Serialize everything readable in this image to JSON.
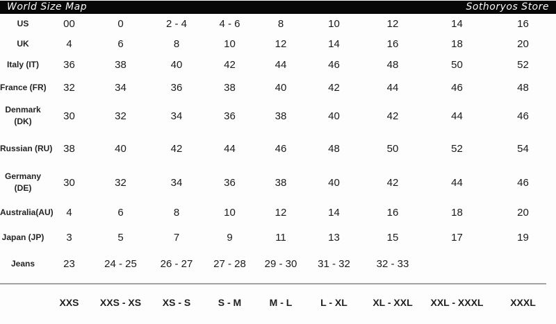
{
  "header": {
    "left_title": "World Size Map",
    "right_title": "Sothoryos Store"
  },
  "table": {
    "rows": [
      {
        "label": "US",
        "values": [
          "00",
          "0",
          "2 - 4",
          "4 - 6",
          "8",
          "10",
          "12",
          "14",
          "16"
        ]
      },
      {
        "label": "UK",
        "values": [
          "4",
          "6",
          "8",
          "10",
          "12",
          "14",
          "16",
          "18",
          "20"
        ]
      },
      {
        "label": "Italy (IT)",
        "values": [
          "36",
          "38",
          "40",
          "42",
          "44",
          "46",
          "48",
          "50",
          "52"
        ]
      },
      {
        "label": "France (FR)",
        "values": [
          "32",
          "34",
          "36",
          "38",
          "40",
          "42",
          "44",
          "46",
          "48"
        ]
      },
      {
        "label": "Denmark (DK)",
        "label_lines": [
          "Denmark",
          "(DK)"
        ],
        "values": [
          "30",
          "32",
          "34",
          "36",
          "38",
          "40",
          "42",
          "44",
          "46"
        ]
      },
      {
        "label": "Russian (RU)",
        "values": [
          "38",
          "40",
          "42",
          "44",
          "46",
          "48",
          "50",
          "52",
          "54"
        ]
      },
      {
        "label": "Germany (DE)",
        "label_lines": [
          "Germany",
          "(DE)"
        ],
        "values": [
          "30",
          "32",
          "34",
          "36",
          "38",
          "40",
          "42",
          "44",
          "46"
        ]
      },
      {
        "label": "Australia(AU)",
        "values": [
          "4",
          "6",
          "8",
          "10",
          "12",
          "14",
          "16",
          "18",
          "20"
        ]
      },
      {
        "label": "Japan (JP)",
        "values": [
          "3",
          "5",
          "7",
          "9",
          "11",
          "13",
          "15",
          "17",
          "19"
        ]
      },
      {
        "label": "Jeans",
        "values": [
          "23",
          "24 - 25",
          "26 - 27",
          "27 - 28",
          "29 - 30",
          "31 - 32",
          "32 - 33",
          "",
          ""
        ]
      }
    ],
    "size_categories": [
      "XXS",
      "XXS - XS",
      "XS - S",
      "S - M",
      "M - L",
      "L - XL",
      "XL - XXL",
      "XXL - XXXL",
      "XXXL"
    ]
  },
  "colors": {
    "header_bg": "#070707",
    "header_text": "#fafafa",
    "body_text": "#1a1a1a",
    "divider": "#a3a3a3",
    "background": "#fdfdfd"
  }
}
